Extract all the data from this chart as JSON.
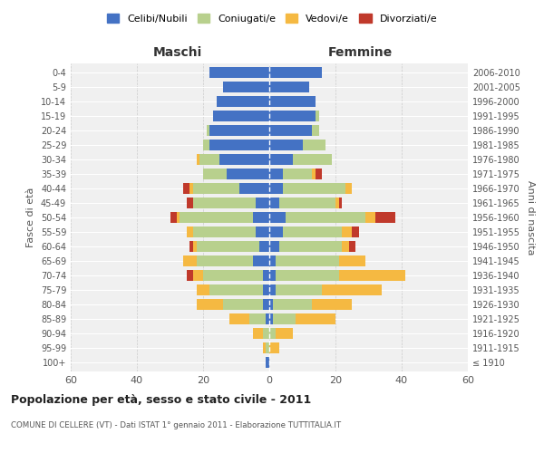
{
  "age_groups": [
    "100+",
    "95-99",
    "90-94",
    "85-89",
    "80-84",
    "75-79",
    "70-74",
    "65-69",
    "60-64",
    "55-59",
    "50-54",
    "45-49",
    "40-44",
    "35-39",
    "30-34",
    "25-29",
    "20-24",
    "15-19",
    "10-14",
    "5-9",
    "0-4"
  ],
  "birth_years": [
    "≤ 1910",
    "1911-1915",
    "1916-1920",
    "1921-1925",
    "1926-1930",
    "1931-1935",
    "1936-1940",
    "1941-1945",
    "1946-1950",
    "1951-1955",
    "1956-1960",
    "1961-1965",
    "1966-1970",
    "1971-1975",
    "1976-1980",
    "1981-1985",
    "1986-1990",
    "1991-1995",
    "1996-2000",
    "2001-2005",
    "2006-2010"
  ],
  "maschi": {
    "celibi": [
      1,
      0,
      0,
      1,
      2,
      2,
      2,
      5,
      3,
      4,
      5,
      4,
      9,
      13,
      15,
      18,
      18,
      17,
      16,
      14,
      18
    ],
    "coniugati": [
      0,
      1,
      2,
      5,
      12,
      16,
      18,
      17,
      19,
      19,
      22,
      19,
      14,
      7,
      6,
      2,
      1,
      0,
      0,
      0,
      0
    ],
    "vedovi": [
      0,
      1,
      3,
      6,
      8,
      4,
      3,
      4,
      1,
      2,
      1,
      0,
      1,
      0,
      1,
      0,
      0,
      0,
      0,
      0,
      0
    ],
    "divorziati": [
      0,
      0,
      0,
      0,
      0,
      0,
      2,
      0,
      1,
      0,
      2,
      2,
      2,
      0,
      0,
      0,
      0,
      0,
      0,
      0,
      0
    ]
  },
  "femmine": {
    "nubili": [
      0,
      0,
      0,
      1,
      1,
      2,
      2,
      2,
      3,
      4,
      5,
      3,
      4,
      4,
      7,
      10,
      13,
      14,
      14,
      12,
      16
    ],
    "coniugate": [
      0,
      0,
      2,
      7,
      12,
      14,
      19,
      19,
      19,
      18,
      24,
      17,
      19,
      9,
      12,
      7,
      2,
      1,
      0,
      0,
      0
    ],
    "vedove": [
      0,
      3,
      5,
      12,
      12,
      18,
      20,
      8,
      2,
      3,
      3,
      1,
      2,
      1,
      0,
      0,
      0,
      0,
      0,
      0,
      0
    ],
    "divorziate": [
      0,
      0,
      0,
      0,
      0,
      0,
      0,
      0,
      2,
      2,
      6,
      1,
      0,
      2,
      0,
      0,
      0,
      0,
      0,
      0,
      0
    ]
  },
  "colors": {
    "celibi": "#4472c4",
    "coniugati": "#b8d08d",
    "vedovi": "#f5b942",
    "divorziati": "#c0392b"
  },
  "xlim": 60,
  "title": "Popolazione per età, sesso e stato civile - 2011",
  "subtitle": "COMUNE DI CELLERE (VT) - Dati ISTAT 1° gennaio 2011 - Elaborazione TUTTITALIA.IT",
  "xlabel_left": "Maschi",
  "xlabel_right": "Femmine",
  "ylabel_left": "Fasce di età",
  "ylabel_right": "Anni di nascita",
  "legend_labels": [
    "Celibi/Nubili",
    "Coniugati/e",
    "Vedovi/e",
    "Divorziati/e"
  ],
  "bg_color": "#ffffff",
  "bar_height": 0.75,
  "grid_color": "#cccccc",
  "ax_bg_color": "#f0f0f0"
}
